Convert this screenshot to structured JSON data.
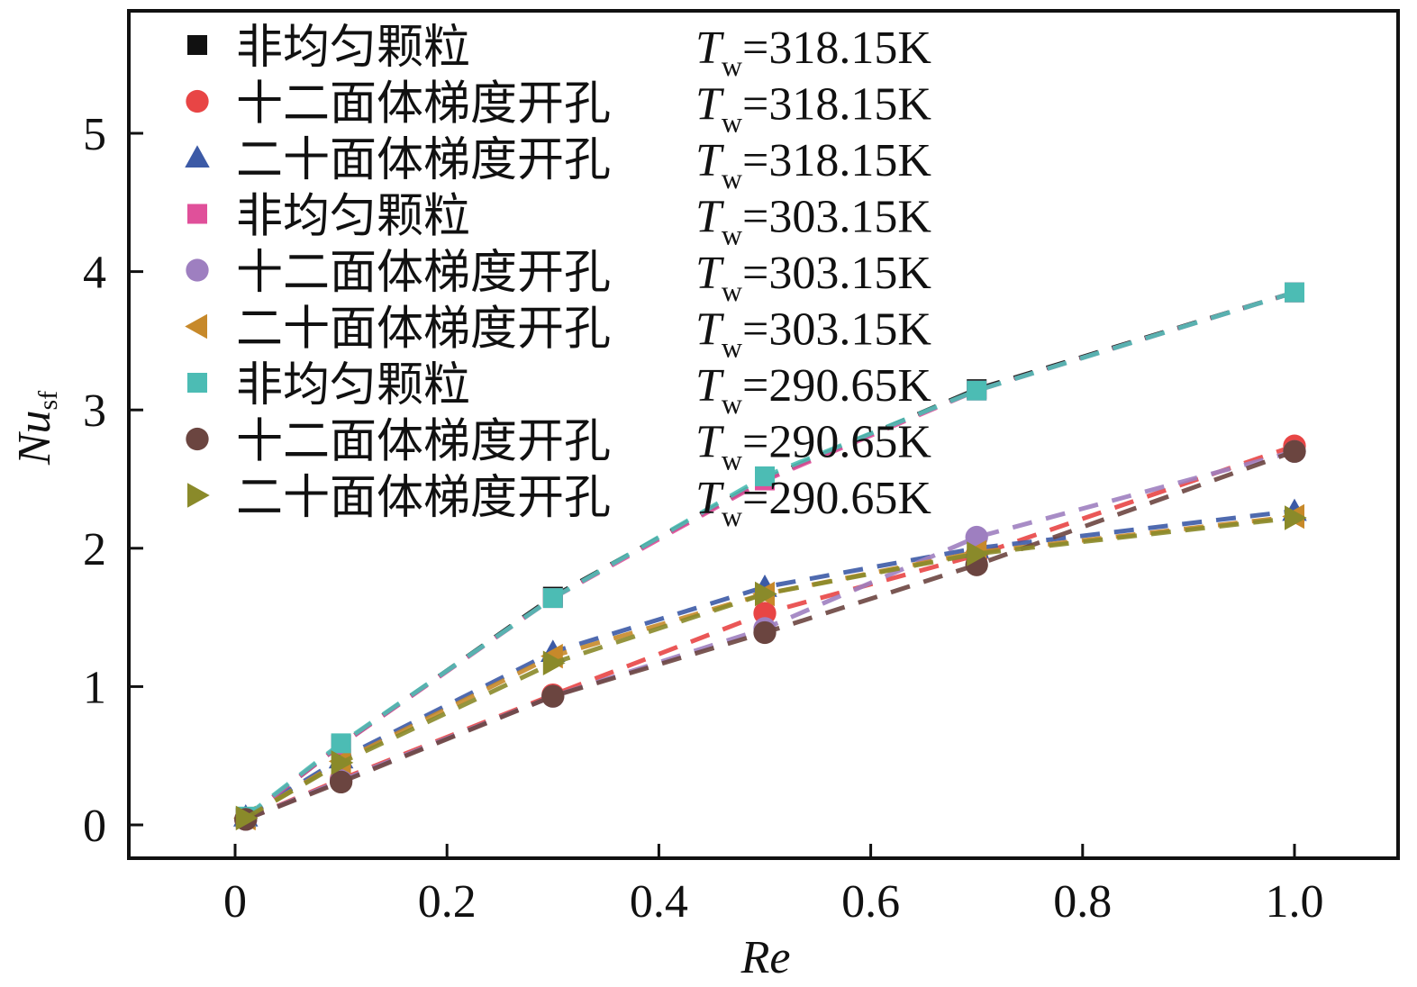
{
  "chart_data": {
    "type": "line",
    "title": "",
    "xlabel": "Re",
    "ylabel": "Nu",
    "ylabel_sub": "sf",
    "xlim": [
      -0.1,
      1.1
    ],
    "ylim": [
      -0.25,
      5.9
    ],
    "xticks": [
      0,
      0.2,
      0.4,
      0.6,
      0.8,
      1.0
    ],
    "xtick_labels": [
      "0",
      "0.2",
      "0.4",
      "0.6",
      "0.8",
      "1.0"
    ],
    "yticks": [
      0,
      1,
      2,
      3,
      4,
      5
    ],
    "ytick_labels": [
      "0",
      "1",
      "2",
      "3",
      "4",
      "5"
    ],
    "legend_position": "top-left",
    "legend_temp_symbol": "T",
    "legend_temp_sub": "w",
    "x": [
      0.01,
      0.1,
      0.3,
      0.5,
      0.7,
      1.0
    ],
    "series": [
      {
        "name": "非均匀颗粒",
        "temp": "=318.15K",
        "marker": "square",
        "color": "#111111",
        "values": [
          0.05,
          0.58,
          1.65,
          2.5,
          3.15,
          3.85
        ]
      },
      {
        "name": "十二面体梯度开孔",
        "temp": "=318.15K",
        "marker": "circle",
        "color": "#e84545",
        "values": [
          0.04,
          0.33,
          0.94,
          1.53,
          1.95,
          2.74
        ]
      },
      {
        "name": "二十面体梯度开孔",
        "temp": "=318.15K",
        "marker": "triangle-up",
        "color": "#3c5aa6",
        "values": [
          0.06,
          0.48,
          1.25,
          1.72,
          2.0,
          2.27
        ]
      },
      {
        "name": "非均匀颗粒",
        "temp": "=303.15K",
        "marker": "square",
        "color": "#e0509a",
        "values": [
          0.05,
          0.58,
          1.64,
          2.49,
          3.14,
          3.85
        ]
      },
      {
        "name": "十二面体梯度开孔",
        "temp": "=303.15K",
        "marker": "circle",
        "color": "#9e7fc0",
        "values": [
          0.04,
          0.32,
          0.93,
          1.42,
          2.08,
          2.7
        ]
      },
      {
        "name": "二十面体梯度开孔",
        "temp": "=303.15K",
        "marker": "triangle-left",
        "color": "#c7892a",
        "values": [
          0.05,
          0.46,
          1.22,
          1.67,
          1.97,
          2.23
        ]
      },
      {
        "name": "非均匀颗粒",
        "temp": "=290.65K",
        "marker": "square",
        "color": "#4cbcb4",
        "values": [
          0.06,
          0.59,
          1.64,
          2.52,
          3.14,
          3.85
        ]
      },
      {
        "name": "十二面体梯度开孔",
        "temp": "=290.65K",
        "marker": "circle",
        "color": "#6b4540",
        "values": [
          0.04,
          0.31,
          0.93,
          1.39,
          1.88,
          2.7
        ]
      },
      {
        "name": "二十面体梯度开孔",
        "temp": "=290.65K",
        "marker": "triangle-right",
        "color": "#8a8a2a",
        "values": [
          0.05,
          0.45,
          1.17,
          1.67,
          1.96,
          2.22
        ]
      }
    ]
  }
}
